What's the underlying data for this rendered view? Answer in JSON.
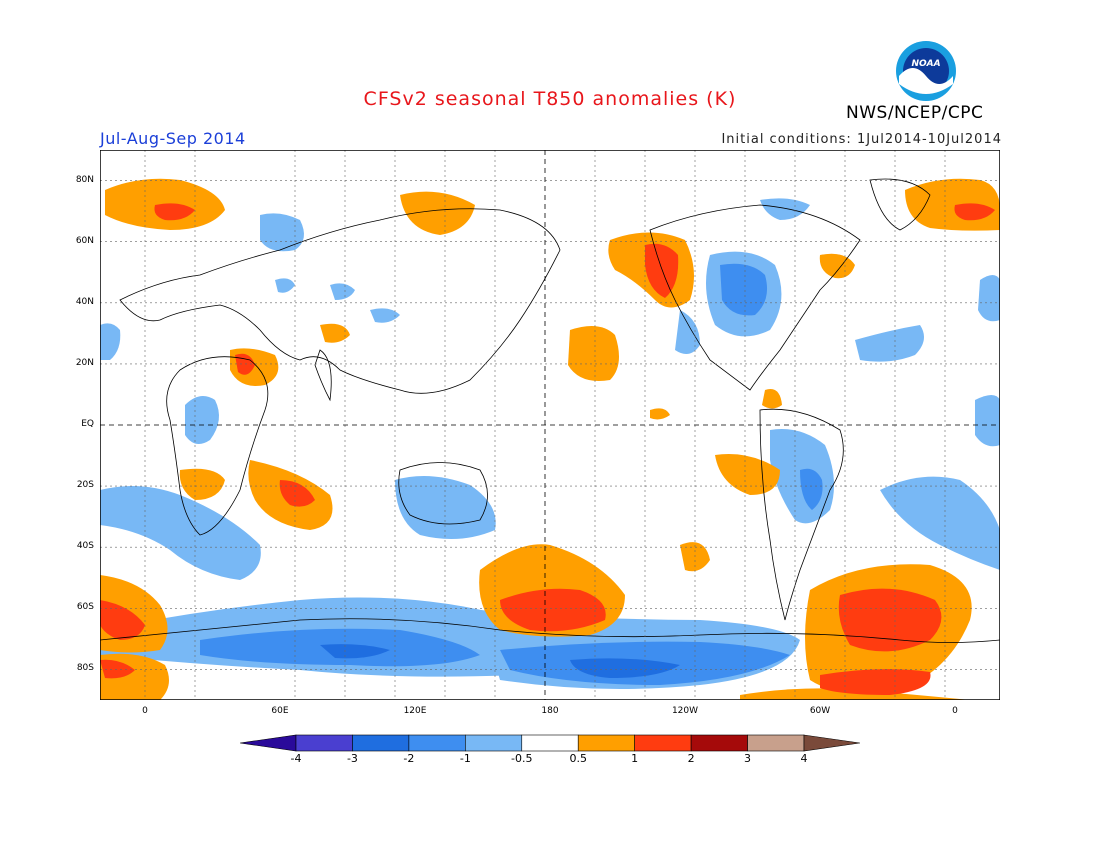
{
  "header": {
    "title": "CFSv2 seasonal T850 anomalies (K)",
    "org": "NWS/NCEP/CPC",
    "period": "Jul-Aug-Sep 2014",
    "initial_conditions": "Initial conditions: 1Jul2014-10Jul2014",
    "logo_text": "NOAA"
  },
  "map": {
    "lon_range": [
      -20,
      20
    ],
    "lat_range": [
      -90,
      90
    ],
    "lat_ticks": [
      {
        "lat": 80,
        "label": "80N"
      },
      {
        "lat": 60,
        "label": "60N"
      },
      {
        "lat": 40,
        "label": "40N"
      },
      {
        "lat": 20,
        "label": "20N"
      },
      {
        "lat": 0,
        "label": "EQ"
      },
      {
        "lat": -20,
        "label": "20S"
      },
      {
        "lat": -40,
        "label": "40S"
      },
      {
        "lat": -60,
        "label": "60S"
      },
      {
        "lat": -80,
        "label": "80S"
      }
    ],
    "lon_ticks": [
      {
        "lon": 0,
        "label": "0"
      },
      {
        "lon": 60,
        "label": "60E"
      },
      {
        "lon": 120,
        "label": "120E"
      },
      {
        "lon": 180,
        "label": "180"
      },
      {
        "lon": 240,
        "label": "120W"
      },
      {
        "lon": 300,
        "label": "60W"
      },
      {
        "lon": 360,
        "label": "0"
      }
    ]
  },
  "colorbar": {
    "colors": [
      "#2a0a9a",
      "#4a3fd0",
      "#1f6ee0",
      "#3e8ef0",
      "#78b8f5",
      "#ffffff",
      "#ff9f00",
      "#ff3c10",
      "#a50a0a",
      "#c8a08c",
      "#7a4a3a"
    ],
    "labels": [
      "-4",
      "-3",
      "-2",
      "-1",
      "-0.5",
      "0.5",
      "1",
      "2",
      "3",
      "4"
    ]
  },
  "colors": {
    "warm_05": "#ff9f00",
    "warm_1": "#ff3c10",
    "cool_05": "#78b8f5",
    "cool_1": "#3e8ef0",
    "cool_2": "#1f6ee0",
    "title": "#e8161b",
    "period": "#1b3fd8"
  }
}
